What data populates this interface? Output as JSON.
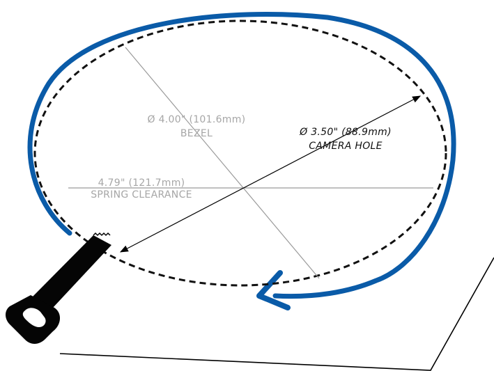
{
  "colors": {
    "ring": "#0a5ba8",
    "dashed_circle": "#111111",
    "dimension_gray": "#9a9a9a",
    "leader_black": "#000000",
    "clip": "#050505",
    "surface_outline": "#000000",
    "background": "#ffffff"
  },
  "labels": {
    "bezel_dimension": "Ø 4.00\" (101.6mm)",
    "bezel_name": "BEZEL",
    "camera_hole_dimension": "Ø 3.50\" (88.9mm)",
    "camera_hole_name": "CAMERA HOLE",
    "spring_dimension": "4.79\" (121.7mm)",
    "spring_name": "SPRING CLEARANCE"
  },
  "icons": {
    "ring_direction": "blue-curved-arrow-icon",
    "spring_clip": "spring-clip-icon"
  }
}
